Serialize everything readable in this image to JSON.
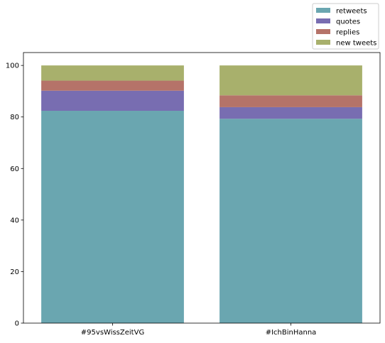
{
  "chart_data": {
    "type": "bar",
    "stacked": true,
    "categories": [
      "#95vsWissZeitVG",
      "#IchBinHanna"
    ],
    "series": [
      {
        "name": "retweets",
        "color": "#6aa6b0",
        "values": [
          82.4,
          79.3
        ]
      },
      {
        "name": "quotes",
        "color": "#786db1",
        "values": [
          7.8,
          4.5
        ]
      },
      {
        "name": "replies",
        "color": "#b57369",
        "values": [
          3.9,
          4.6
        ]
      },
      {
        "name": "new tweets",
        "color": "#a8b06c",
        "values": [
          5.9,
          11.6
        ]
      }
    ],
    "ylim": [
      0,
      105
    ],
    "yticks": [
      0,
      20,
      40,
      60,
      80,
      100
    ],
    "legend_position": "top-right, outside plot",
    "grid": false
  }
}
